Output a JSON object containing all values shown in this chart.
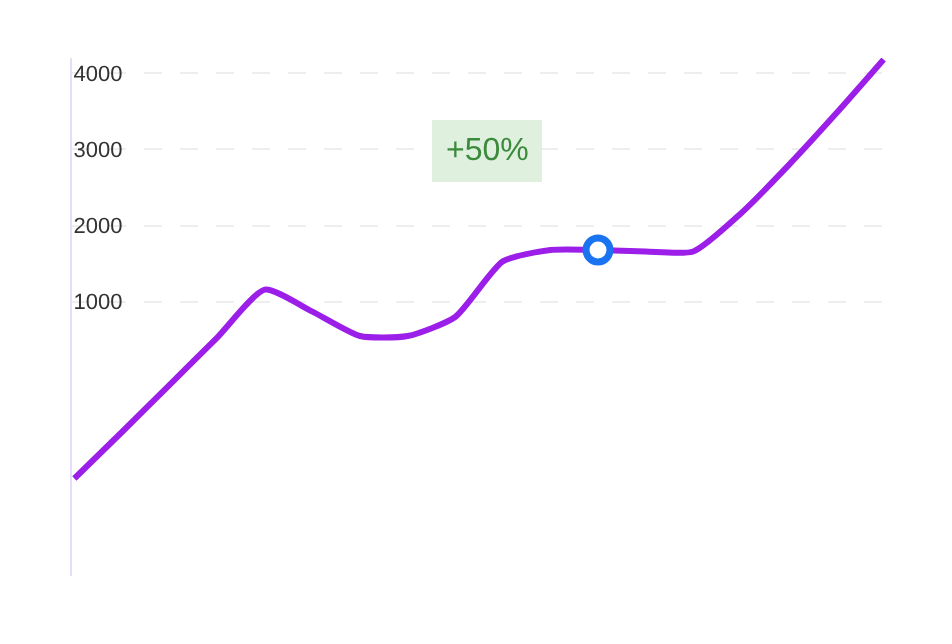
{
  "chart_data": {
    "type": "line",
    "categories": [
      null,
      null,
      null,
      null,
      null,
      null,
      null,
      null,
      null,
      null,
      null,
      null,
      null,
      null,
      null,
      null,
      null,
      null
    ],
    "series": [
      {
        "color": "#9b1fe8",
        "values": [
          -1320,
          -710,
          -90,
          530,
          1160,
          870,
          550,
          550,
          800,
          1530,
          1680,
          1680,
          1660,
          1660,
          2160,
          2790,
          3470,
          4180
        ]
      },
      {
        "type": "scatter",
        "color": "#1a73f0",
        "values": [
          null,
          null,
          null,
          null,
          null,
          null,
          null,
          null,
          null,
          null,
          null,
          1680,
          null,
          null,
          null,
          null,
          null,
          null
        ]
      }
    ],
    "ylim": [
      -2600,
      4200
    ],
    "yticks": [
      1000,
      2000,
      3000,
      4000
    ],
    "grid": "y",
    "tick_labels": "y",
    "annotations": [
      "+50%"
    ]
  }
}
